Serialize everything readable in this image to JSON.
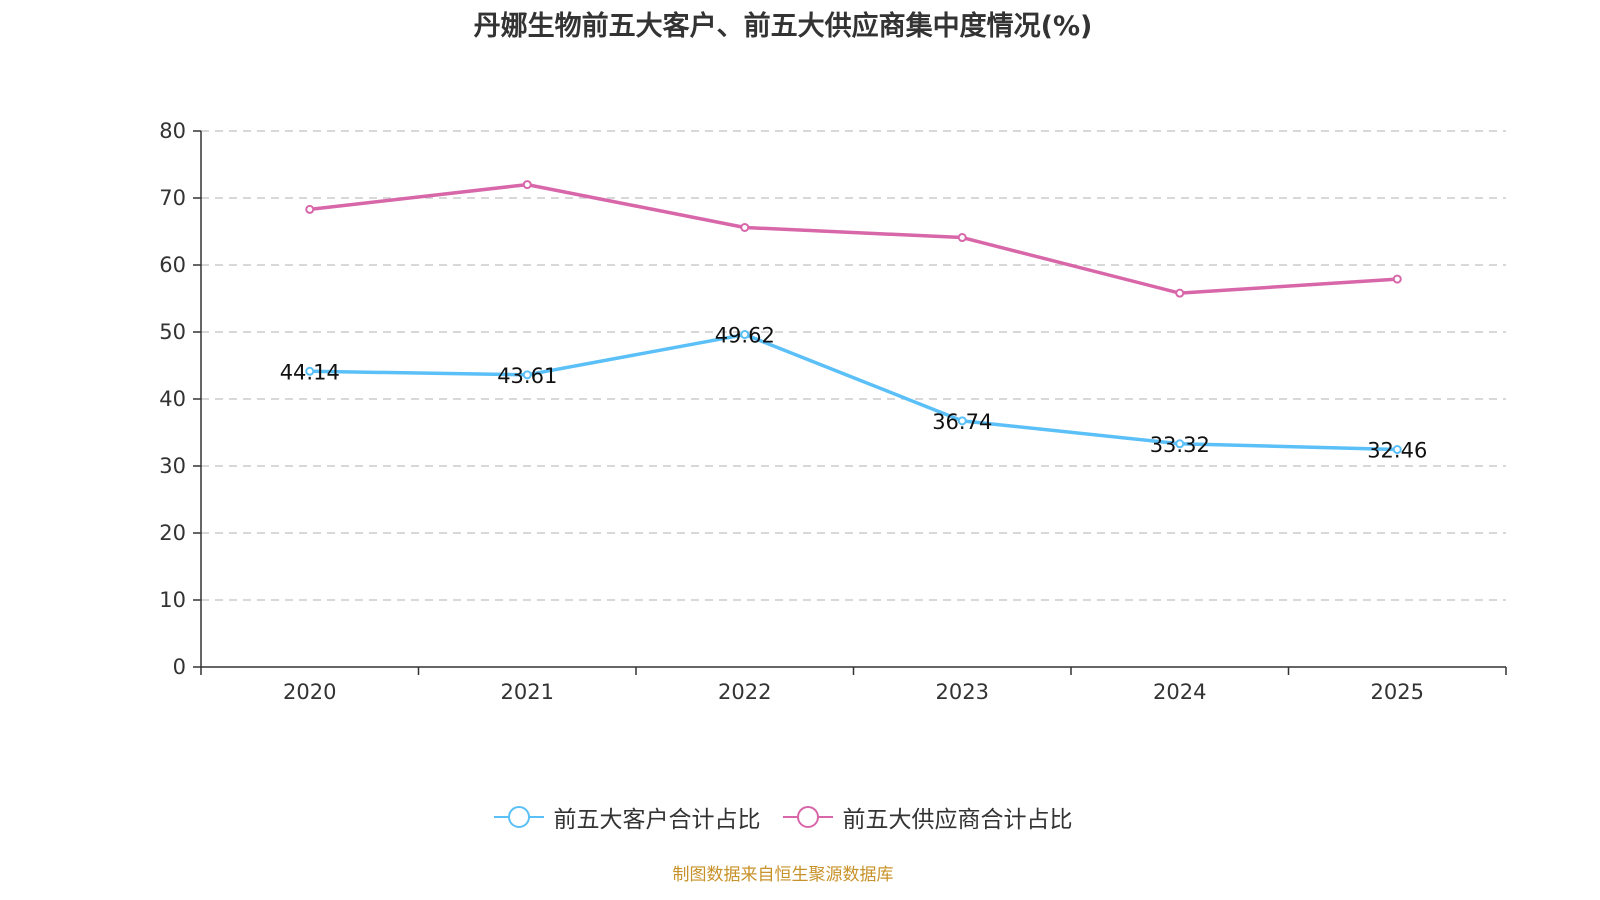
{
  "title": "丹娜生物前五大客户、前五大供应商集中度情况(%)",
  "source_note": "制图数据来自恒生聚源数据库",
  "source_color": "#C8922A",
  "chart_data": {
    "type": "line",
    "title": "丹娜生物前五大客户、前五大供应商集中度情况(%)",
    "xlabel": "",
    "ylabel": "",
    "categories": [
      "2020",
      "2021",
      "2022",
      "2023",
      "2024",
      "2025"
    ],
    "ylim": [
      0,
      80
    ],
    "yticks": [
      0,
      10,
      20,
      30,
      40,
      50,
      60,
      70,
      80
    ],
    "grid": true,
    "legend_position": "bottom",
    "series": [
      {
        "name": "前五大客户合计占比",
        "color": "#5BC0F8",
        "values": [
          44.14,
          43.61,
          49.62,
          36.74,
          33.32,
          32.46
        ],
        "labels": [
          "44.14",
          "43.61",
          "49.62",
          "36.74",
          "33.32",
          "32.46"
        ],
        "show_labels": true
      },
      {
        "name": "前五大供应商合计占比",
        "color": "#D867AA",
        "values": [
          68.3,
          72.0,
          65.6,
          64.1,
          55.8,
          57.9
        ],
        "show_labels": false
      }
    ]
  }
}
